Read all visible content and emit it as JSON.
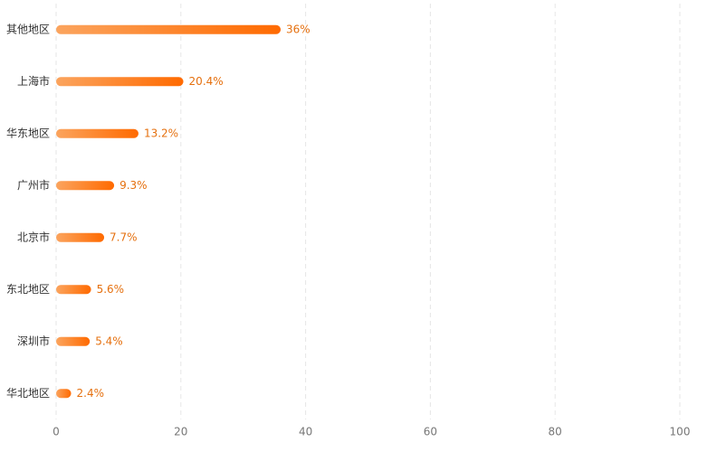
{
  "chart_data": {
    "type": "hbar",
    "categories": [
      "其他地区",
      "上海市",
      "华东地区",
      "广州市",
      "北京市",
      "东北地区",
      "深圳市",
      "华北地区"
    ],
    "values": [
      36,
      20.4,
      13.2,
      9.3,
      7.7,
      5.6,
      5.4,
      2.4
    ],
    "value_labels": [
      "36%",
      "20.4%",
      "13.2%",
      "9.3%",
      "7.7%",
      "5.6%",
      "5.4%",
      "2.4%"
    ],
    "gradient": [
      "#fba45e",
      "#ff6a00"
    ],
    "label_color": "#e5700f",
    "xlim": [
      0,
      100
    ],
    "xticks": [
      0,
      20,
      40,
      60,
      80,
      100
    ],
    "grid": true
  }
}
